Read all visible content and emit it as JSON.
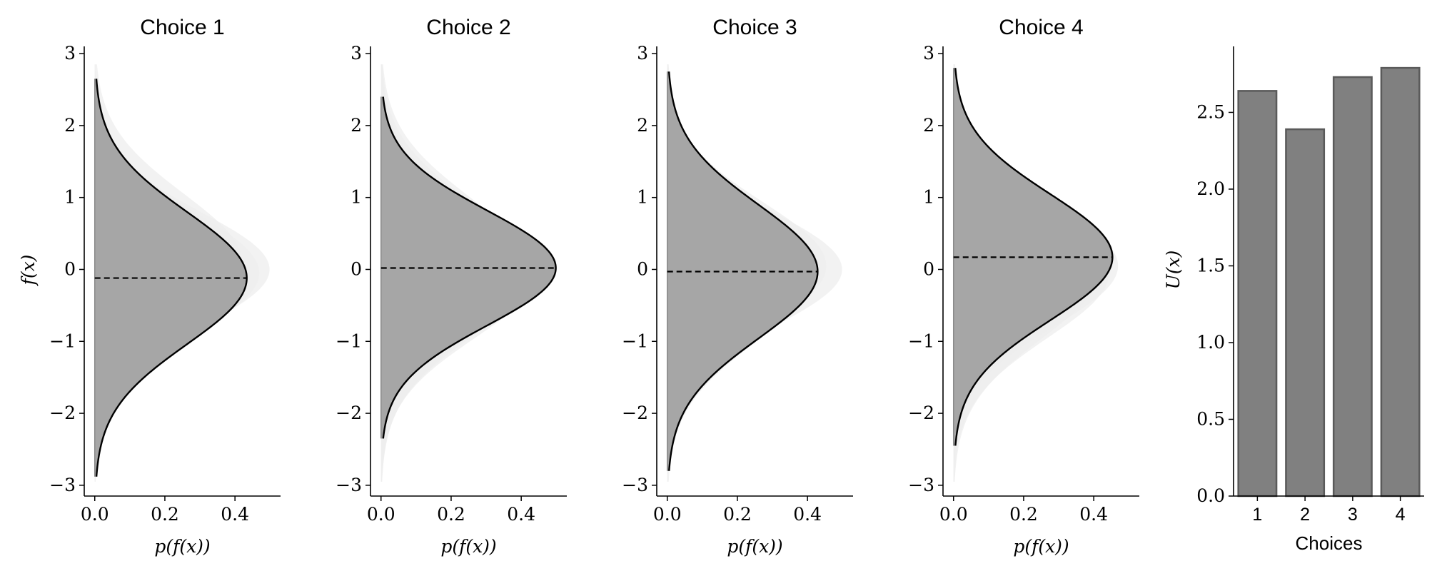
{
  "chart_data": [
    {
      "type": "area",
      "title": "Choice 1",
      "xlabel": "p(f(x))",
      "ylabel": "f(x)",
      "xlim": [
        -0.03,
        0.53
      ],
      "ylim": [
        -3.15,
        3.1
      ],
      "xticks": [
        0.0,
        0.2,
        0.4
      ],
      "xtick_labels": [
        "0.0",
        "0.2",
        "0.4"
      ],
      "yticks": [
        -3,
        -2,
        -1,
        0,
        1,
        2,
        3
      ],
      "ytick_labels": [
        "−3",
        "−2",
        "−1",
        "0",
        "1",
        "2",
        "3"
      ],
      "mean": -0.12,
      "std": 0.92,
      "y_range": [
        -2.88,
        2.65
      ],
      "background_curves": [
        {
          "mean": 0.0,
          "std": 0.8
        },
        {
          "mean": -0.05,
          "std": 0.85
        },
        {
          "mean": 0.1,
          "std": 0.95
        }
      ]
    },
    {
      "type": "area",
      "title": "Choice 2",
      "xlabel": "p(f(x))",
      "ylabel": "",
      "xlim": [
        -0.03,
        0.53
      ],
      "ylim": [
        -3.15,
        3.1
      ],
      "xticks": [
        0.0,
        0.2,
        0.4
      ],
      "xtick_labels": [
        "0.0",
        "0.2",
        "0.4"
      ],
      "yticks": [
        -3,
        -2,
        -1,
        0,
        1,
        2,
        3
      ],
      "ytick_labels": [
        "−3",
        "−2",
        "−1",
        "0",
        "1",
        "2",
        "3"
      ],
      "mean": 0.02,
      "std": 0.8,
      "y_range": [
        -2.35,
        2.4
      ],
      "background_curves": [
        {
          "mean": 0.0,
          "std": 0.93
        },
        {
          "mean": -0.05,
          "std": 0.9
        },
        {
          "mean": 0.05,
          "std": 0.96
        }
      ]
    },
    {
      "type": "area",
      "title": "Choice 3",
      "xlabel": "p(f(x))",
      "ylabel": "",
      "xlim": [
        -0.03,
        0.53
      ],
      "ylim": [
        -3.15,
        3.1
      ],
      "xticks": [
        0.0,
        0.2,
        0.4
      ],
      "xtick_labels": [
        "0.0",
        "0.2",
        "0.4"
      ],
      "yticks": [
        -3,
        -2,
        -1,
        0,
        1,
        2,
        3
      ],
      "ytick_labels": [
        "−3",
        "−2",
        "−1",
        "0",
        "1",
        "2",
        "3"
      ],
      "mean": -0.03,
      "std": 0.93,
      "y_range": [
        -2.8,
        2.75
      ],
      "background_curves": [
        {
          "mean": 0.0,
          "std": 0.8
        },
        {
          "mean": -0.05,
          "std": 0.95
        },
        {
          "mean": 0.05,
          "std": 0.88
        }
      ]
    },
    {
      "type": "area",
      "title": "Choice 4",
      "xlabel": "p(f(x))",
      "ylabel": "",
      "xlim": [
        -0.03,
        0.53
      ],
      "ylim": [
        -3.15,
        3.1
      ],
      "xticks": [
        0.0,
        0.2,
        0.4
      ],
      "xtick_labels": [
        "0.0",
        "0.2",
        "0.4"
      ],
      "yticks": [
        -3,
        -2,
        -1,
        0,
        1,
        2,
        3
      ],
      "ytick_labels": [
        "−3",
        "−2",
        "−1",
        "0",
        "1",
        "2",
        "3"
      ],
      "mean": 0.17,
      "std": 0.88,
      "y_range": [
        -2.45,
        2.8
      ],
      "background_curves": [
        {
          "mean": 0.0,
          "std": 0.95
        },
        {
          "mean": 0.05,
          "std": 0.85
        },
        {
          "mean": -0.05,
          "std": 0.9
        }
      ]
    },
    {
      "type": "bar",
      "title": "",
      "xlabel": "Choices",
      "ylabel": "U(x)",
      "categories": [
        "1",
        "2",
        "3",
        "4"
      ],
      "values": [
        2.64,
        2.39,
        2.73,
        2.79
      ],
      "ylim": [
        0,
        2.93
      ],
      "yticks": [
        0.0,
        0.5,
        1.0,
        1.5,
        2.0,
        2.5
      ],
      "ytick_labels": [
        "0.0",
        "0.5",
        "1.0",
        "1.5",
        "2.0",
        "2.5"
      ]
    }
  ],
  "colors": {
    "fill_main": "#a6a6a6",
    "fill_background": "#eeeeee",
    "curve": "#000000",
    "bar_fill": "#808080",
    "bar_edge": "#5a5a5a"
  }
}
